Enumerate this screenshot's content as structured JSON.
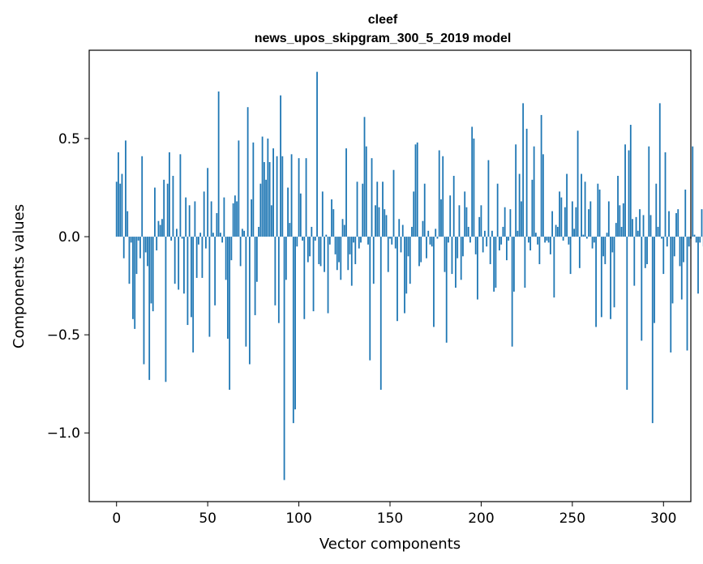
{
  "chart_data": {
    "type": "bar",
    "title_line1": "cleef",
    "title_line2": "news_upos_skipgram_300_5_2019 model",
    "xlabel": "Vector components",
    "ylabel": "Components values",
    "xlim": [
      -15,
      315
    ],
    "ylim": [
      -1.35,
      0.95
    ],
    "xticks": [
      0,
      50,
      100,
      150,
      200,
      250,
      300
    ],
    "xtick_labels": [
      "0",
      "50",
      "100",
      "150",
      "200",
      "250",
      "300"
    ],
    "yticks": [
      -1.0,
      -0.5,
      0.0,
      0.5
    ],
    "ytick_labels": [
      "−1.0",
      "−0.5",
      "0.0",
      "0.5"
    ],
    "color": "#1f77b4",
    "values": [
      0.28,
      0.43,
      0.27,
      0.32,
      -0.11,
      0.49,
      0.13,
      -0.24,
      -0.03,
      -0.42,
      -0.47,
      -0.19,
      -0.02,
      -0.11,
      0.41,
      -0.65,
      -0.08,
      -0.15,
      -0.73,
      -0.34,
      -0.38,
      0.25,
      -0.07,
      0.08,
      0.06,
      0.09,
      0.29,
      -0.74,
      0.27,
      0.43,
      -0.02,
      0.31,
      -0.24,
      0.04,
      -0.27,
      0.42,
      -0.01,
      -0.29,
      0.2,
      -0.45,
      0.16,
      -0.41,
      -0.59,
      0.18,
      -0.21,
      -0.04,
      0.02,
      -0.21,
      0.23,
      -0.06,
      0.35,
      -0.51,
      0.18,
      0.02,
      -0.35,
      0.12,
      0.74,
      0.02,
      -0.03,
      0.2,
      -0.22,
      -0.52,
      -0.78,
      -0.12,
      0.17,
      0.21,
      0.18,
      0.49,
      -0.15,
      0.04,
      0.03,
      -0.56,
      0.66,
      -0.65,
      0.19,
      0.48,
      -0.4,
      -0.23,
      0.05,
      0.27,
      0.51,
      0.38,
      0.29,
      0.5,
      0.38,
      0.16,
      0.45,
      -0.35,
      0.41,
      -0.44,
      0.72,
      0.41,
      -1.24,
      -0.22,
      0.25,
      0.07,
      0.42,
      -0.95,
      -0.88,
      -0.05,
      0.4,
      0.22,
      -0.02,
      -0.42,
      0.4,
      -0.13,
      -0.1,
      0.05,
      -0.38,
      -0.02,
      0.84,
      -0.14,
      -0.15,
      0.23,
      -0.18,
      0.01,
      -0.39,
      -0.04,
      0.19,
      0.14,
      -0.09,
      -0.17,
      -0.13,
      -0.22,
      0.09,
      0.06,
      0.45,
      -0.17,
      -0.09,
      -0.25,
      -0.03,
      -0.14,
      0.28,
      -0.06,
      -0.03,
      0.27,
      0.61,
      0.46,
      -0.04,
      -0.63,
      0.4,
      -0.24,
      0.16,
      0.28,
      0.15,
      -0.78,
      0.28,
      0.14,
      0.11,
      -0.18,
      -0.01,
      -0.04,
      0.34,
      -0.06,
      -0.43,
      0.09,
      -0.08,
      0.06,
      -0.39,
      -0.29,
      -0.1,
      -0.24,
      0.05,
      0.23,
      0.47,
      0.48,
      -0.15,
      -0.13,
      0.08,
      0.27,
      -0.11,
      0.03,
      -0.04,
      -0.05,
      -0.46,
      0.04,
      -0.01,
      0.44,
      0.19,
      0.41,
      -0.18,
      -0.54,
      -0.03,
      0.21,
      -0.19,
      0.31,
      -0.26,
      -0.11,
      0.16,
      -0.22,
      -0.1,
      0.23,
      0.15,
      0.05,
      -0.03,
      0.56,
      0.5,
      -0.09,
      -0.32,
      0.1,
      0.16,
      -0.08,
      0.03,
      -0.05,
      0.39,
      -0.14,
      0.03,
      -0.28,
      -0.26,
      0.27,
      -0.07,
      -0.04,
      0.05,
      0.15,
      -0.12,
      -0.02,
      0.14,
      -0.56,
      -0.28,
      0.47,
      0.03,
      0.32,
      0.18,
      0.68,
      -0.26,
      0.55,
      -0.03,
      -0.07,
      0.29,
      0.46,
      0.02,
      -0.04,
      -0.14,
      0.62,
      0.42,
      -0.03,
      -0.02,
      -0.03,
      -0.09,
      0.13,
      -0.31,
      0.06,
      0.05,
      0.23,
      0.2,
      -0.02,
      0.15,
      0.32,
      -0.04,
      -0.19,
      0.18,
      0.04,
      0.15,
      0.54,
      -0.16,
      0.32,
      0.01,
      0.28,
      -0.01,
      0.14,
      0.18,
      -0.06,
      -0.03,
      -0.46,
      0.27,
      0.24,
      -0.41,
      -0.1,
      -0.14,
      0.02,
      0.18,
      -0.42,
      -0.08,
      -0.36,
      0.07,
      0.31,
      0.16,
      0.05,
      0.17,
      0.47,
      -0.78,
      0.44,
      0.57,
      0.09,
      -0.25,
      0.1,
      0.03,
      0.14,
      -0.53,
      0.11,
      -0.16,
      -0.14,
      0.46,
      0.11,
      -0.95,
      -0.44,
      0.27,
      0.05,
      0.68,
      -0.01,
      -0.19,
      0.43,
      -0.05,
      0.13,
      -0.59,
      -0.34,
      -0.1,
      0.12,
      0.14,
      -0.15,
      -0.32,
      -0.13,
      0.24,
      -0.58,
      -0.05,
      -0.01,
      0.46,
      0.01,
      -0.03,
      -0.29,
      -0.03,
      0.14,
      -0.05
    ]
  }
}
